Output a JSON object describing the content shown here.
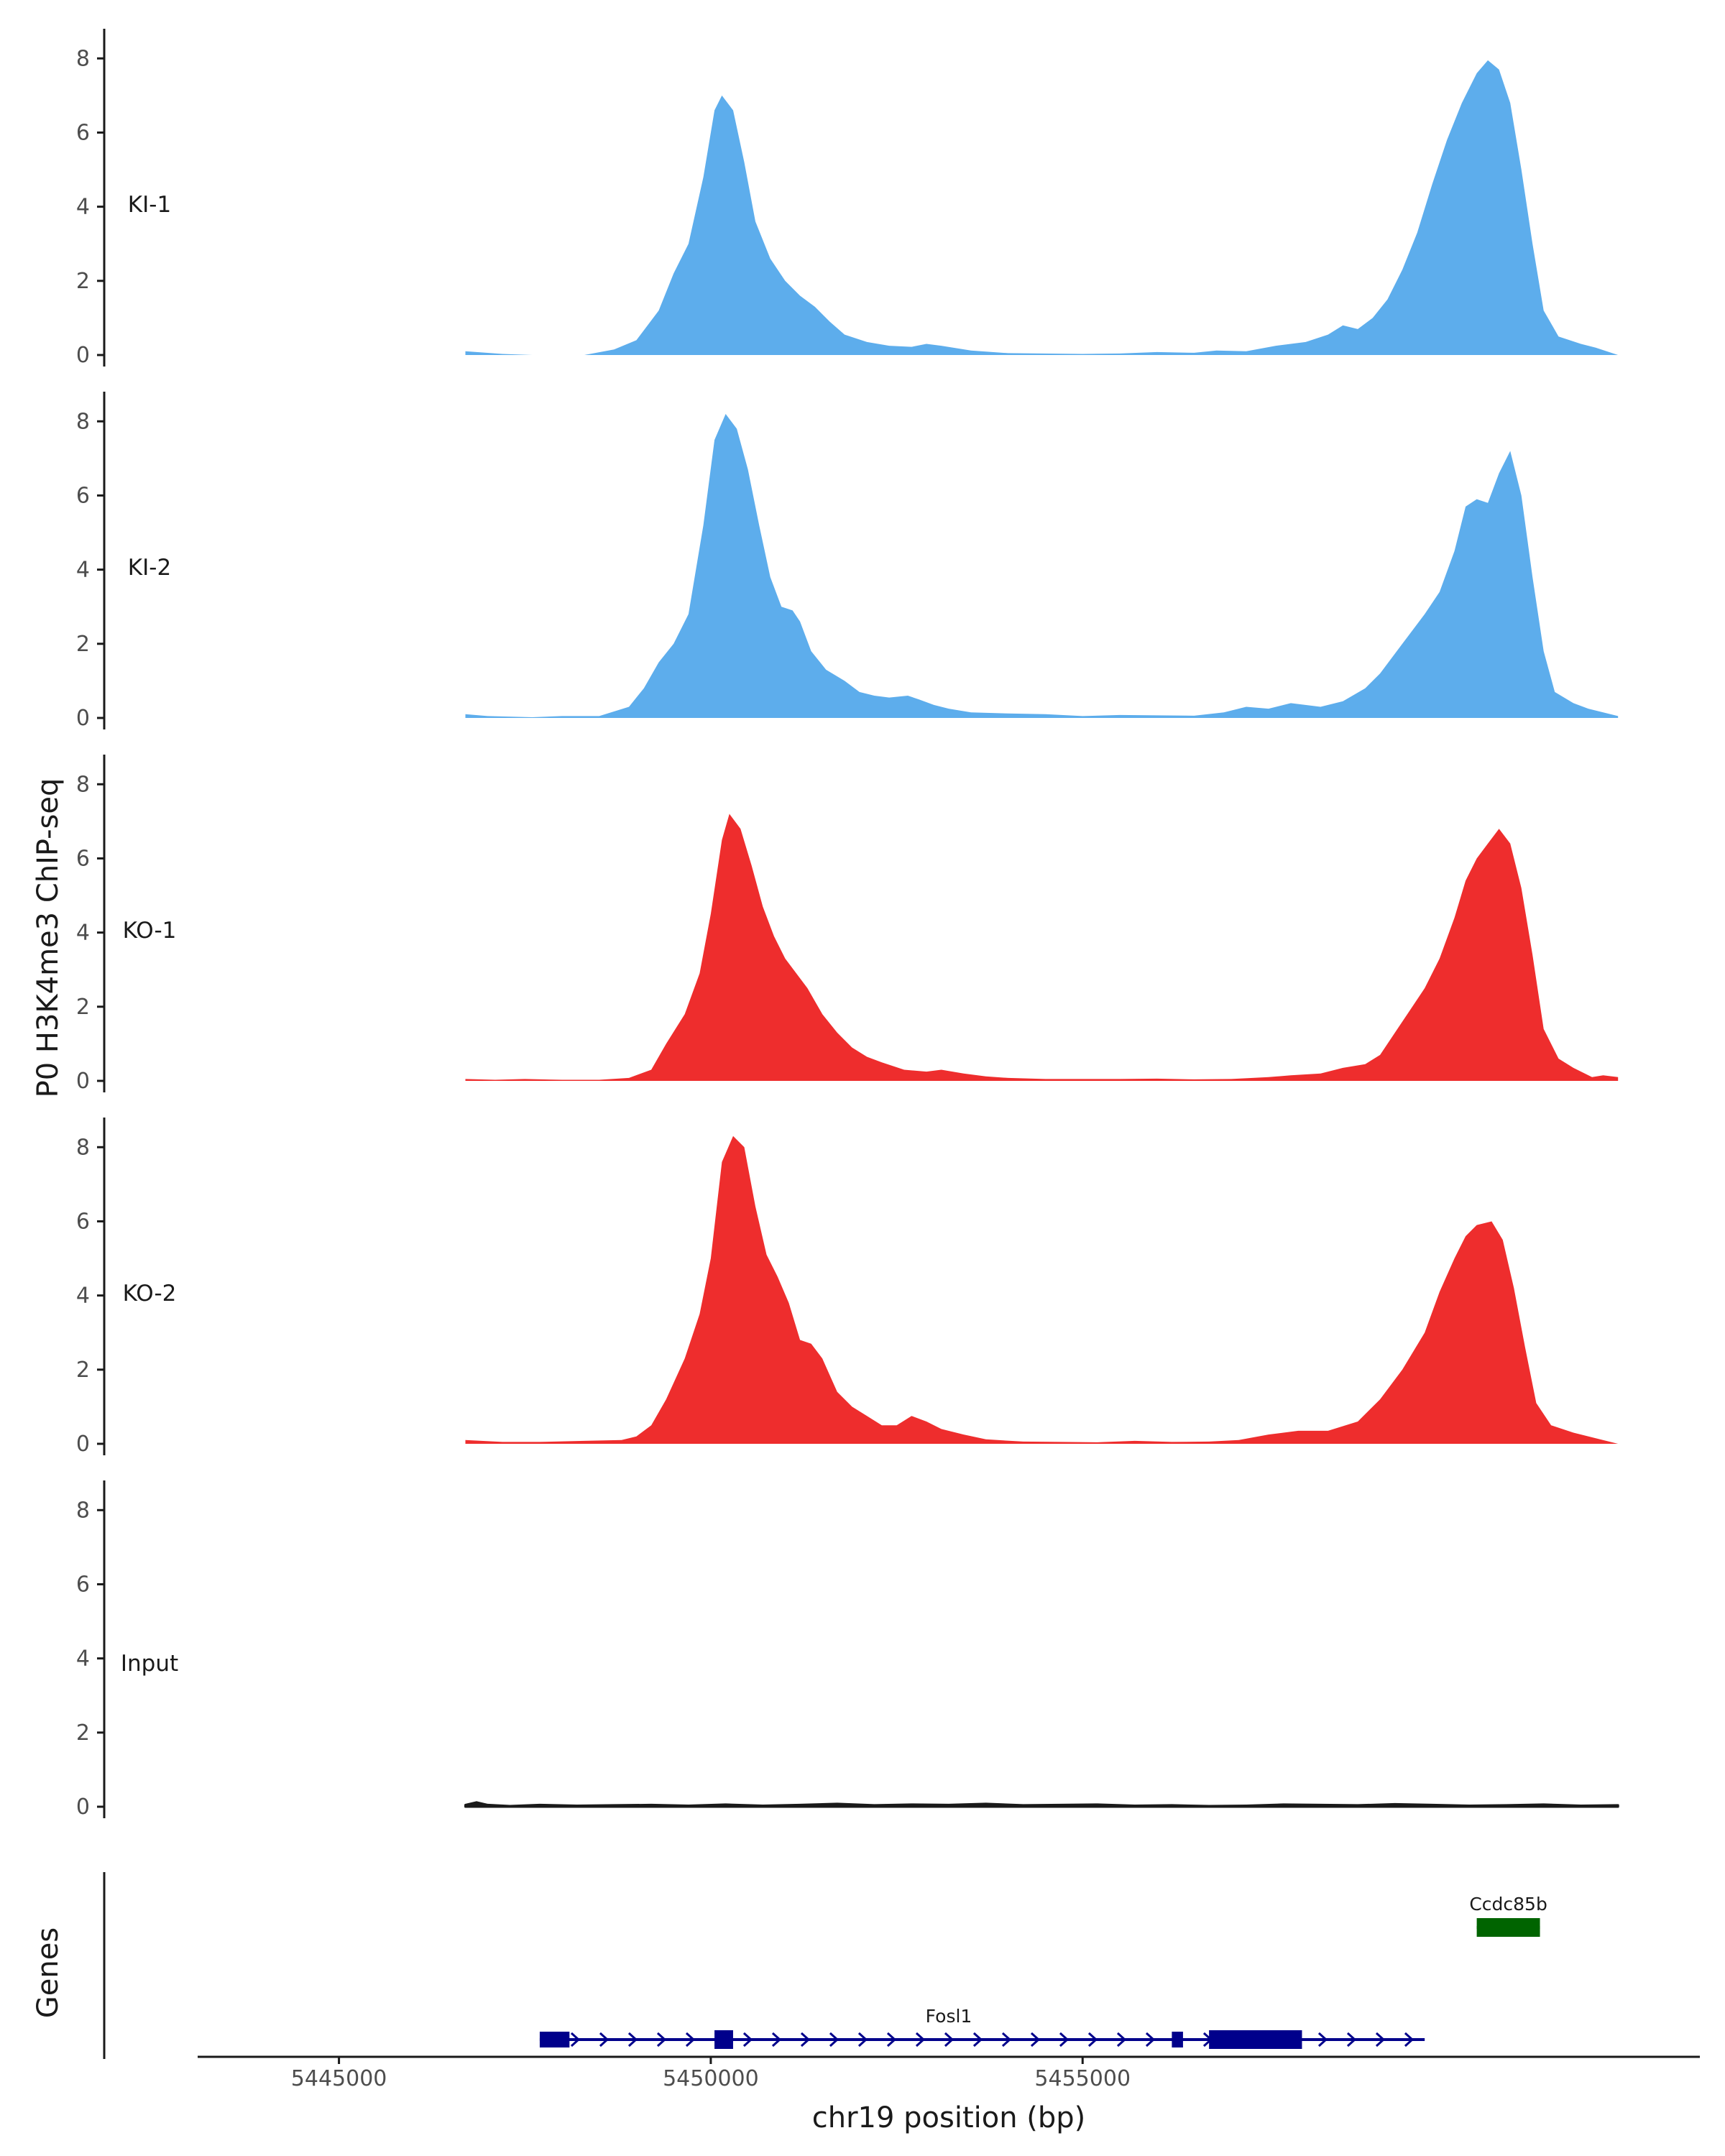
{
  "chart_data": {
    "type": "area",
    "ylabel": "P0 H3K4me3 ChIP-seq",
    "xlabel": "chr19 position (bp)",
    "xlim": [
      5443100,
      5463300
    ],
    "x_ticks": [
      5445000,
      5450000,
      5455000
    ],
    "x_tick_labels": [
      "5445000",
      "5450000",
      "5455000"
    ],
    "ylim": [
      0,
      8.8
    ],
    "y_ticks": [
      0,
      2,
      4,
      6,
      8
    ],
    "y_tick_labels": [
      "0",
      "2",
      "4",
      "6",
      "8"
    ],
    "grid": false,
    "legend": "none",
    "region": [
      5446700,
      5458900
    ],
    "tracks": [
      {
        "name": "KI-1",
        "color": "#5DADEC",
        "points": [
          [
            5446700,
            0.1
          ],
          [
            5447200,
            0.03
          ],
          [
            5447600,
            0
          ],
          [
            5448300,
            0
          ],
          [
            5448700,
            0.15
          ],
          [
            5449000,
            0.4
          ],
          [
            5449300,
            1.2
          ],
          [
            5449500,
            2.2
          ],
          [
            5449700,
            3.0
          ],
          [
            5449900,
            4.8
          ],
          [
            5450050,
            6.6
          ],
          [
            5450150,
            7.0
          ],
          [
            5450300,
            6.6
          ],
          [
            5450450,
            5.2
          ],
          [
            5450600,
            3.6
          ],
          [
            5450800,
            2.6
          ],
          [
            5451000,
            2.0
          ],
          [
            5451200,
            1.6
          ],
          [
            5451400,
            1.3
          ],
          [
            5451600,
            0.9
          ],
          [
            5451800,
            0.55
          ],
          [
            5452100,
            0.35
          ],
          [
            5452400,
            0.25
          ],
          [
            5452700,
            0.22
          ],
          [
            5452900,
            0.3
          ],
          [
            5453100,
            0.25
          ],
          [
            5453500,
            0.12
          ],
          [
            5454000,
            0.05
          ],
          [
            5455000,
            0.03
          ],
          [
            5455500,
            0.04
          ],
          [
            5456000,
            0.08
          ],
          [
            5456500,
            0.06
          ],
          [
            5456800,
            0.12
          ],
          [
            5457200,
            0.1
          ],
          [
            5457600,
            0.25
          ],
          [
            5458000,
            0.35
          ],
          [
            5458300,
            0.55
          ],
          [
            5458500,
            0.8
          ],
          [
            5458700,
            0.7
          ],
          [
            5458900,
            1.0
          ],
          [
            5459100,
            1.5
          ],
          [
            5459300,
            2.3
          ],
          [
            5459500,
            3.3
          ],
          [
            5459700,
            4.6
          ],
          [
            5459900,
            5.8
          ],
          [
            5460100,
            6.8
          ],
          [
            5460300,
            7.6
          ],
          [
            5460450,
            7.95
          ],
          [
            5460600,
            7.7
          ],
          [
            5460750,
            6.8
          ],
          [
            5460900,
            5.0
          ],
          [
            5461050,
            3.0
          ],
          [
            5461200,
            1.2
          ],
          [
            5461400,
            0.5
          ],
          [
            5461700,
            0.3
          ],
          [
            5461900,
            0.2
          ],
          [
            5462200,
            0
          ]
        ]
      },
      {
        "name": "KI-2",
        "color": "#5DADEC",
        "points": [
          [
            5446700,
            0.1
          ],
          [
            5447000,
            0.05
          ],
          [
            5447600,
            0.02
          ],
          [
            5448000,
            0.05
          ],
          [
            5448500,
            0.05
          ],
          [
            5448900,
            0.3
          ],
          [
            5449100,
            0.8
          ],
          [
            5449300,
            1.5
          ],
          [
            5449500,
            2.0
          ],
          [
            5449700,
            2.8
          ],
          [
            5449900,
            5.2
          ],
          [
            5450050,
            7.5
          ],
          [
            5450200,
            8.2
          ],
          [
            5450350,
            7.8
          ],
          [
            5450500,
            6.7
          ],
          [
            5450650,
            5.2
          ],
          [
            5450800,
            3.8
          ],
          [
            5450950,
            3.0
          ],
          [
            5451100,
            2.9
          ],
          [
            5451200,
            2.6
          ],
          [
            5451350,
            1.8
          ],
          [
            5451550,
            1.3
          ],
          [
            5451800,
            1.0
          ],
          [
            5452000,
            0.7
          ],
          [
            5452200,
            0.6
          ],
          [
            5452400,
            0.55
          ],
          [
            5452650,
            0.6
          ],
          [
            5452800,
            0.5
          ],
          [
            5453000,
            0.35
          ],
          [
            5453200,
            0.25
          ],
          [
            5453500,
            0.15
          ],
          [
            5454000,
            0.12
          ],
          [
            5454500,
            0.1
          ],
          [
            5455000,
            0.05
          ],
          [
            5455500,
            0.08
          ],
          [
            5456000,
            0.07
          ],
          [
            5456500,
            0.06
          ],
          [
            5456900,
            0.15
          ],
          [
            5457200,
            0.3
          ],
          [
            5457500,
            0.25
          ],
          [
            5457800,
            0.4
          ],
          [
            5458200,
            0.3
          ],
          [
            5458500,
            0.45
          ],
          [
            5458800,
            0.8
          ],
          [
            5459000,
            1.2
          ],
          [
            5459300,
            2.0
          ],
          [
            5459600,
            2.8
          ],
          [
            5459800,
            3.4
          ],
          [
            5460000,
            4.5
          ],
          [
            5460150,
            5.7
          ],
          [
            5460300,
            5.9
          ],
          [
            5460450,
            5.8
          ],
          [
            5460600,
            6.6
          ],
          [
            5460750,
            7.2
          ],
          [
            5460900,
            6.0
          ],
          [
            5461050,
            3.8
          ],
          [
            5461200,
            1.8
          ],
          [
            5461350,
            0.7
          ],
          [
            5461600,
            0.4
          ],
          [
            5461800,
            0.25
          ],
          [
            5462000,
            0.15
          ],
          [
            5462200,
            0.05
          ]
        ]
      },
      {
        "name": "KO-1",
        "color": "#EE2D2D",
        "points": [
          [
            5446700,
            0.05
          ],
          [
            5447100,
            0.03
          ],
          [
            5447500,
            0.05
          ],
          [
            5448000,
            0.03
          ],
          [
            5448500,
            0.03
          ],
          [
            5448900,
            0.08
          ],
          [
            5449200,
            0.3
          ],
          [
            5449400,
            1.0
          ],
          [
            5449650,
            1.8
          ],
          [
            5449850,
            2.9
          ],
          [
            5450000,
            4.5
          ],
          [
            5450150,
            6.5
          ],
          [
            5450250,
            7.2
          ],
          [
            5450400,
            6.8
          ],
          [
            5450550,
            5.8
          ],
          [
            5450700,
            4.7
          ],
          [
            5450850,
            3.9
          ],
          [
            5451000,
            3.3
          ],
          [
            5451150,
            2.9
          ],
          [
            5451300,
            2.5
          ],
          [
            5451500,
            1.8
          ],
          [
            5451700,
            1.3
          ],
          [
            5451900,
            0.9
          ],
          [
            5452100,
            0.65
          ],
          [
            5452300,
            0.5
          ],
          [
            5452600,
            0.3
          ],
          [
            5452900,
            0.25
          ],
          [
            5453100,
            0.3
          ],
          [
            5453400,
            0.2
          ],
          [
            5453700,
            0.12
          ],
          [
            5454000,
            0.08
          ],
          [
            5454500,
            0.05
          ],
          [
            5455000,
            0.05
          ],
          [
            5455500,
            0.05
          ],
          [
            5456000,
            0.06
          ],
          [
            5456500,
            0.04
          ],
          [
            5457000,
            0.05
          ],
          [
            5457500,
            0.1
          ],
          [
            5457800,
            0.15
          ],
          [
            5458200,
            0.2
          ],
          [
            5458500,
            0.35
          ],
          [
            5458800,
            0.45
          ],
          [
            5459000,
            0.7
          ],
          [
            5459200,
            1.3
          ],
          [
            5459400,
            1.9
          ],
          [
            5459600,
            2.5
          ],
          [
            5459800,
            3.3
          ],
          [
            5460000,
            4.4
          ],
          [
            5460150,
            5.4
          ],
          [
            5460300,
            6.0
          ],
          [
            5460450,
            6.4
          ],
          [
            5460600,
            6.8
          ],
          [
            5460750,
            6.4
          ],
          [
            5460900,
            5.2
          ],
          [
            5461050,
            3.4
          ],
          [
            5461200,
            1.4
          ],
          [
            5461400,
            0.6
          ],
          [
            5461600,
            0.35
          ],
          [
            5461850,
            0.1
          ],
          [
            5462000,
            0.15
          ],
          [
            5462200,
            0.1
          ]
        ]
      },
      {
        "name": "KO-2",
        "color": "#EE2D2D",
        "points": [
          [
            5446700,
            0.1
          ],
          [
            5447200,
            0.05
          ],
          [
            5447700,
            0.05
          ],
          [
            5448300,
            0.08
          ],
          [
            5448800,
            0.1
          ],
          [
            5449000,
            0.2
          ],
          [
            5449200,
            0.5
          ],
          [
            5449400,
            1.2
          ],
          [
            5449650,
            2.3
          ],
          [
            5449850,
            3.5
          ],
          [
            5450000,
            5.0
          ],
          [
            5450150,
            7.6
          ],
          [
            5450300,
            8.3
          ],
          [
            5450450,
            8.0
          ],
          [
            5450600,
            6.4
          ],
          [
            5450750,
            5.1
          ],
          [
            5450900,
            4.5
          ],
          [
            5451050,
            3.8
          ],
          [
            5451200,
            2.8
          ],
          [
            5451350,
            2.7
          ],
          [
            5451500,
            2.3
          ],
          [
            5451700,
            1.4
          ],
          [
            5451900,
            1.0
          ],
          [
            5452100,
            0.75
          ],
          [
            5452300,
            0.5
          ],
          [
            5452500,
            0.5
          ],
          [
            5452700,
            0.75
          ],
          [
            5452900,
            0.6
          ],
          [
            5453100,
            0.4
          ],
          [
            5453400,
            0.25
          ],
          [
            5453700,
            0.12
          ],
          [
            5454200,
            0.06
          ],
          [
            5454700,
            0.05
          ],
          [
            5455200,
            0.04
          ],
          [
            5455700,
            0.08
          ],
          [
            5456200,
            0.05
          ],
          [
            5456700,
            0.06
          ],
          [
            5457100,
            0.1
          ],
          [
            5457500,
            0.25
          ],
          [
            5457900,
            0.35
          ],
          [
            5458300,
            0.35
          ],
          [
            5458700,
            0.6
          ],
          [
            5459000,
            1.2
          ],
          [
            5459300,
            2.0
          ],
          [
            5459600,
            3.0
          ],
          [
            5459800,
            4.1
          ],
          [
            5460000,
            5.0
          ],
          [
            5460150,
            5.6
          ],
          [
            5460300,
            5.9
          ],
          [
            5460500,
            6.0
          ],
          [
            5460650,
            5.5
          ],
          [
            5460800,
            4.2
          ],
          [
            5460950,
            2.6
          ],
          [
            5461100,
            1.1
          ],
          [
            5461300,
            0.5
          ],
          [
            5461600,
            0.3
          ],
          [
            5461900,
            0.15
          ],
          [
            5462200,
            0
          ]
        ]
      },
      {
        "name": "Input",
        "color": "#1a1a1a",
        "points": [
          [
            5446700,
            0.05
          ],
          [
            5446850,
            0.12
          ],
          [
            5447000,
            0.05
          ],
          [
            5447300,
            0.02
          ],
          [
            5447700,
            0.05
          ],
          [
            5448200,
            0.03
          ],
          [
            5448700,
            0.04
          ],
          [
            5449200,
            0.05
          ],
          [
            5449700,
            0.03
          ],
          [
            5450200,
            0.06
          ],
          [
            5450700,
            0.03
          ],
          [
            5451200,
            0.05
          ],
          [
            5451700,
            0.08
          ],
          [
            5452200,
            0.04
          ],
          [
            5452700,
            0.06
          ],
          [
            5453200,
            0.05
          ],
          [
            5453700,
            0.08
          ],
          [
            5454200,
            0.04
          ],
          [
            5454700,
            0.05
          ],
          [
            5455200,
            0.06
          ],
          [
            5455700,
            0.03
          ],
          [
            5456200,
            0.04
          ],
          [
            5456700,
            0.02
          ],
          [
            5457200,
            0.03
          ],
          [
            5457700,
            0.06
          ],
          [
            5458200,
            0.05
          ],
          [
            5458700,
            0.04
          ],
          [
            5459200,
            0.07
          ],
          [
            5459700,
            0.05
          ],
          [
            5460200,
            0.03
          ],
          [
            5460700,
            0.04
          ],
          [
            5461200,
            0.06
          ],
          [
            5461700,
            0.03
          ],
          [
            5462200,
            0.04
          ]
        ]
      }
    ],
    "genes": {
      "label": "Genes",
      "items": [
        {
          "name": "Fosl1",
          "strand": "+",
          "color": "#00008B",
          "row": 1,
          "start": 5447700,
          "end": 5459600,
          "exons": [
            [
              5447700,
              5448100,
              "utr"
            ],
            [
              5450050,
              5450300,
              "cds"
            ],
            [
              5456200,
              5456350,
              "utr"
            ],
            [
              5456700,
              5457950,
              "cds"
            ]
          ]
        },
        {
          "name": "Ccdc85b",
          "strand": "+",
          "color": "#006400",
          "row": 0,
          "start": 5460300,
          "end": 5461150,
          "exons": [
            [
              5460300,
              5461150,
              "cds"
            ]
          ]
        }
      ]
    }
  }
}
